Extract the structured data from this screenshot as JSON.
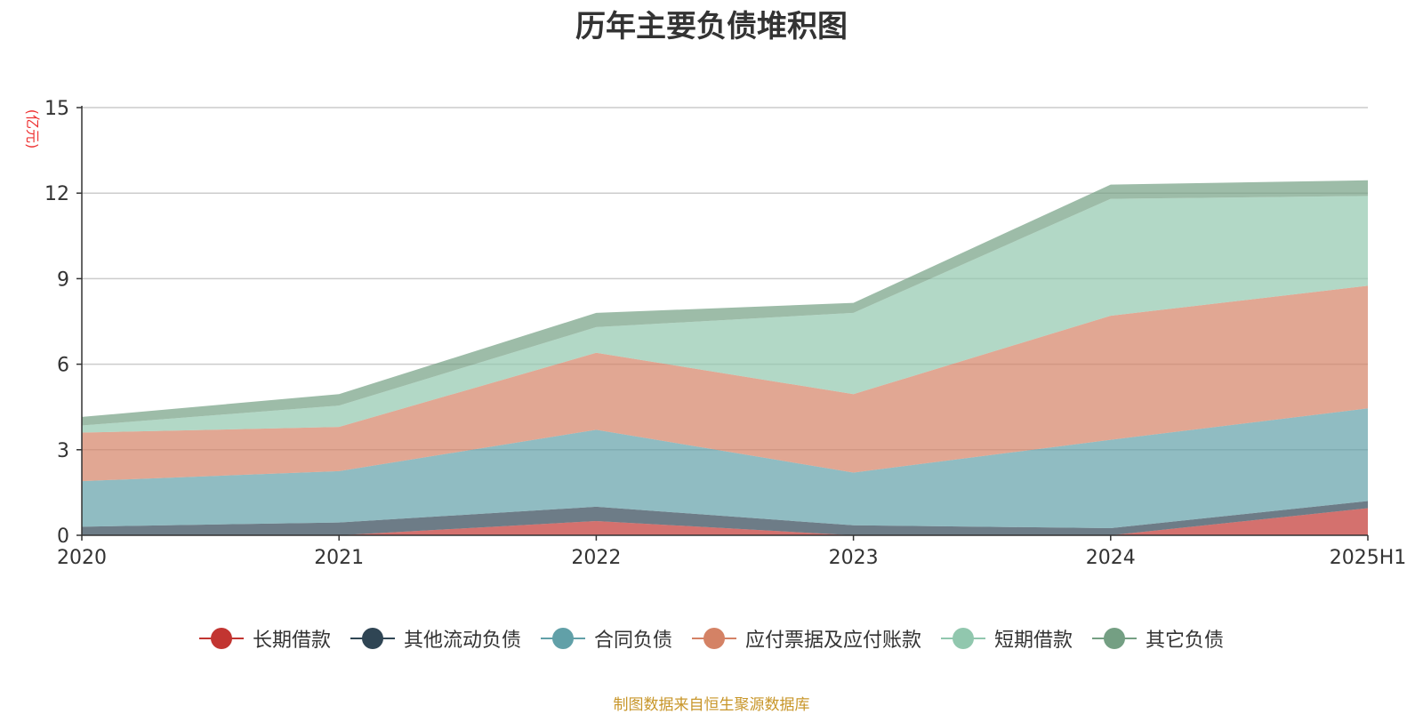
{
  "chart_data": {
    "type": "area",
    "stacked": true,
    "title": "历年主要负债堆积图",
    "ylabel": "亿元",
    "ylabel_display": "(亿元)",
    "x": [
      "2020",
      "2021",
      "2022",
      "2023",
      "2024",
      "2025H1"
    ],
    "ylim": [
      0,
      15
    ],
    "yticks": [
      "0",
      "3",
      "6",
      "9",
      "12",
      "15"
    ],
    "grid": true,
    "legend_position": "bottom",
    "series": [
      {
        "name": "长期借款",
        "color": "#c23531",
        "values": [
          0,
          0,
          0.5,
          0,
          0,
          0.95
        ]
      },
      {
        "name": "其他流动负债",
        "color": "#2f4554",
        "values": [
          0.3,
          0.45,
          0.5,
          0.35,
          0.25,
          0.25
        ]
      },
      {
        "name": "合同负债",
        "color": "#61a0a8",
        "values": [
          1.6,
          1.8,
          2.7,
          1.85,
          3.1,
          3.25
        ]
      },
      {
        "name": "应付票据及应付账款",
        "color": "#d48265",
        "values": [
          1.7,
          1.55,
          2.7,
          2.75,
          4.35,
          4.3
        ]
      },
      {
        "name": "短期借款",
        "color": "#91c7ae",
        "values": [
          0.25,
          0.75,
          0.9,
          2.85,
          4.1,
          3.15
        ]
      },
      {
        "name": "其它负债",
        "color": "#749f83",
        "values": [
          0.3,
          0.4,
          0.5,
          0.35,
          0.5,
          0.55
        ]
      }
    ]
  },
  "source_note": "制图数据来自恒生聚源数据库"
}
